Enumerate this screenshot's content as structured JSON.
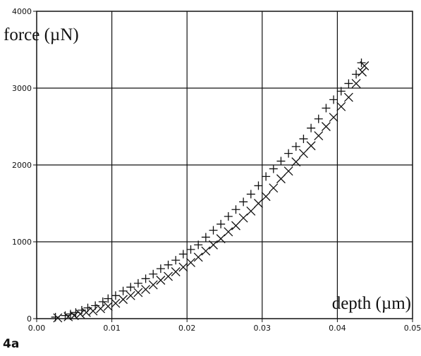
{
  "figure_label": "4a",
  "chart_data": {
    "type": "scatter",
    "xlabel": "depth (µm)",
    "ylabel": "force (µN)",
    "xlim": [
      0,
      0.05
    ],
    "ylim": [
      0,
      4000
    ],
    "x_ticks": [
      "0.00",
      "0.01",
      "0.02",
      "0.03",
      "0.04",
      "0.05"
    ],
    "y_ticks": [
      "0",
      "1000",
      "2000",
      "3000",
      "4000"
    ],
    "grid": true,
    "series": [
      {
        "marker": "plus",
        "points": [
          [
            0.0025,
            20
          ],
          [
            0.0038,
            40
          ],
          [
            0.0045,
            60
          ],
          [
            0.0052,
            80
          ],
          [
            0.006,
            110
          ],
          [
            0.0068,
            140
          ],
          [
            0.0078,
            170
          ],
          [
            0.0088,
            220
          ],
          [
            0.0095,
            260
          ],
          [
            0.0105,
            300
          ],
          [
            0.0115,
            360
          ],
          [
            0.0125,
            410
          ],
          [
            0.0135,
            460
          ],
          [
            0.0145,
            520
          ],
          [
            0.0155,
            580
          ],
          [
            0.0165,
            650
          ],
          [
            0.0175,
            700
          ],
          [
            0.0185,
            760
          ],
          [
            0.0195,
            840
          ],
          [
            0.0205,
            900
          ],
          [
            0.0215,
            960
          ],
          [
            0.0225,
            1060
          ],
          [
            0.0235,
            1150
          ],
          [
            0.0245,
            1230
          ],
          [
            0.0255,
            1330
          ],
          [
            0.0265,
            1420
          ],
          [
            0.0275,
            1520
          ],
          [
            0.0285,
            1620
          ],
          [
            0.0295,
            1730
          ],
          [
            0.0305,
            1850
          ],
          [
            0.0315,
            1950
          ],
          [
            0.0325,
            2050
          ],
          [
            0.0335,
            2150
          ],
          [
            0.0345,
            2240
          ],
          [
            0.0355,
            2340
          ],
          [
            0.0365,
            2480
          ],
          [
            0.0375,
            2600
          ],
          [
            0.0385,
            2740
          ],
          [
            0.0395,
            2850
          ],
          [
            0.0405,
            2960
          ],
          [
            0.0415,
            3060
          ],
          [
            0.0425,
            3180
          ],
          [
            0.0432,
            3330
          ]
        ]
      },
      {
        "marker": "cross",
        "points": [
          [
            0.0028,
            10
          ],
          [
            0.0042,
            25
          ],
          [
            0.005,
            40
          ],
          [
            0.0058,
            60
          ],
          [
            0.0066,
            80
          ],
          [
            0.0075,
            100
          ],
          [
            0.0085,
            130
          ],
          [
            0.0095,
            160
          ],
          [
            0.0105,
            200
          ],
          [
            0.0115,
            250
          ],
          [
            0.0125,
            300
          ],
          [
            0.0135,
            340
          ],
          [
            0.0145,
            380
          ],
          [
            0.0155,
            440
          ],
          [
            0.0165,
            500
          ],
          [
            0.0175,
            550
          ],
          [
            0.0185,
            610
          ],
          [
            0.0195,
            670
          ],
          [
            0.0205,
            730
          ],
          [
            0.0215,
            800
          ],
          [
            0.0225,
            880
          ],
          [
            0.0235,
            960
          ],
          [
            0.0245,
            1040
          ],
          [
            0.0255,
            1130
          ],
          [
            0.0265,
            1210
          ],
          [
            0.0275,
            1310
          ],
          [
            0.0285,
            1400
          ],
          [
            0.0295,
            1500
          ],
          [
            0.0305,
            1590
          ],
          [
            0.0315,
            1700
          ],
          [
            0.0325,
            1820
          ],
          [
            0.0335,
            1920
          ],
          [
            0.0345,
            2040
          ],
          [
            0.0355,
            2150
          ],
          [
            0.0365,
            2250
          ],
          [
            0.0375,
            2380
          ],
          [
            0.0385,
            2500
          ],
          [
            0.0395,
            2620
          ],
          [
            0.0405,
            2760
          ],
          [
            0.0415,
            2880
          ],
          [
            0.0425,
            3060
          ],
          [
            0.0433,
            3210
          ],
          [
            0.0436,
            3290
          ]
        ]
      }
    ]
  }
}
